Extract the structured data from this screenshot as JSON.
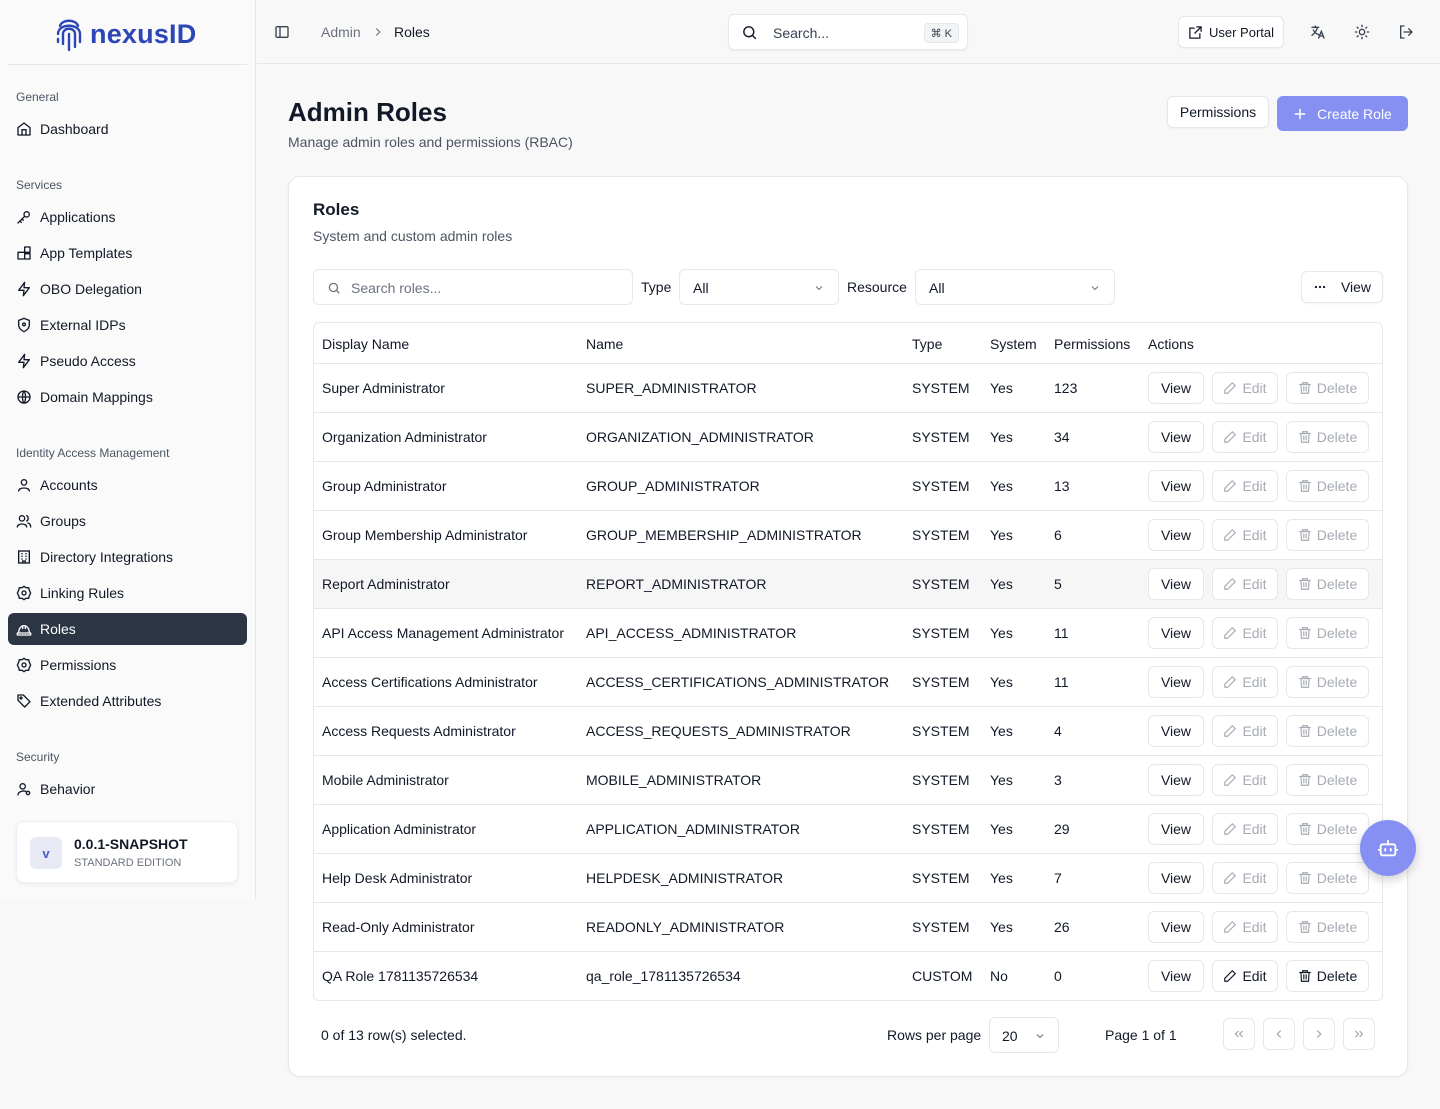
{
  "brand": {
    "name": "nexusID"
  },
  "sidebar": {
    "sections": [
      {
        "label": "General",
        "items": [
          {
            "label": "Dashboard",
            "icon": "home-icon"
          }
        ]
      },
      {
        "label": "Services",
        "items": [
          {
            "label": "Applications",
            "icon": "key-icon"
          },
          {
            "label": "App Templates",
            "icon": "blocks-icon"
          },
          {
            "label": "OBO Delegation",
            "icon": "zap-icon"
          },
          {
            "label": "External IDPs",
            "icon": "shield-icon"
          },
          {
            "label": "Pseudo Access",
            "icon": "zap-icon"
          },
          {
            "label": "Domain Mappings",
            "icon": "globe-icon"
          }
        ]
      },
      {
        "label": "Identity Access Management",
        "items": [
          {
            "label": "Accounts",
            "icon": "user-icon"
          },
          {
            "label": "Groups",
            "icon": "users-icon"
          },
          {
            "label": "Directory Integrations",
            "icon": "building-icon"
          },
          {
            "label": "Linking Rules",
            "icon": "badge-icon"
          },
          {
            "label": "Roles",
            "icon": "hard-hat-icon"
          },
          {
            "label": "Permissions",
            "icon": "badge-icon"
          },
          {
            "label": "Extended Attributes",
            "icon": "tag-icon"
          }
        ]
      },
      {
        "label": "Security",
        "items": [
          {
            "label": "Behavior",
            "icon": "user-cog-icon"
          }
        ]
      }
    ],
    "active_item": "Roles"
  },
  "version": {
    "avatar": "v",
    "title": "0.0.1-SNAPSHOT",
    "subtitle": "STANDARD EDITION"
  },
  "header": {
    "breadcrumb": [
      "Admin",
      "Roles"
    ],
    "search_placeholder": "Search...",
    "shortcut": "⌘ K",
    "user_portal_label": "User Portal"
  },
  "page": {
    "title": "Admin Roles",
    "subtitle": "Manage admin roles and permissions (RBAC)",
    "permissions_button": "Permissions",
    "create_button": "Create Role"
  },
  "card": {
    "title": "Roles",
    "subtitle": "System and custom admin roles",
    "search_placeholder": "Search roles...",
    "type_label": "Type",
    "type_value": "All",
    "resource_label": "Resource",
    "resource_value": "All",
    "view_button": "View"
  },
  "table": {
    "columns": [
      "Display Name",
      "Name",
      "Type",
      "System",
      "Permissions",
      "Actions"
    ],
    "action_labels": {
      "view": "View",
      "edit": "Edit",
      "delete": "Delete"
    },
    "rows": [
      {
        "display_name": "Super Administrator",
        "name": "SUPER_ADMINISTRATOR",
        "type": "SYSTEM",
        "system": "Yes",
        "permissions": "123",
        "editable": false
      },
      {
        "display_name": "Organization Administrator",
        "name": "ORGANIZATION_ADMINISTRATOR",
        "type": "SYSTEM",
        "system": "Yes",
        "permissions": "34",
        "editable": false
      },
      {
        "display_name": "Group Administrator",
        "name": "GROUP_ADMINISTRATOR",
        "type": "SYSTEM",
        "system": "Yes",
        "permissions": "13",
        "editable": false
      },
      {
        "display_name": "Group Membership Administrator",
        "name": "GROUP_MEMBERSHIP_ADMINISTRATOR",
        "type": "SYSTEM",
        "system": "Yes",
        "permissions": "6",
        "editable": false
      },
      {
        "display_name": "Report Administrator",
        "name": "REPORT_ADMINISTRATOR",
        "type": "SYSTEM",
        "system": "Yes",
        "permissions": "5",
        "editable": false
      },
      {
        "display_name": "API Access Management Administrator",
        "name": "API_ACCESS_ADMINISTRATOR",
        "type": "SYSTEM",
        "system": "Yes",
        "permissions": "11",
        "editable": false
      },
      {
        "display_name": "Access Certifications Administrator",
        "name": "ACCESS_CERTIFICATIONS_ADMINISTRATOR",
        "type": "SYSTEM",
        "system": "Yes",
        "permissions": "11",
        "editable": false
      },
      {
        "display_name": "Access Requests Administrator",
        "name": "ACCESS_REQUESTS_ADMINISTRATOR",
        "type": "SYSTEM",
        "system": "Yes",
        "permissions": "4",
        "editable": false
      },
      {
        "display_name": "Mobile Administrator",
        "name": "MOBILE_ADMINISTRATOR",
        "type": "SYSTEM",
        "system": "Yes",
        "permissions": "3",
        "editable": false
      },
      {
        "display_name": "Application Administrator",
        "name": "APPLICATION_ADMINISTRATOR",
        "type": "SYSTEM",
        "system": "Yes",
        "permissions": "29",
        "editable": false
      },
      {
        "display_name": "Help Desk Administrator",
        "name": "HELPDESK_ADMINISTRATOR",
        "type": "SYSTEM",
        "system": "Yes",
        "permissions": "7",
        "editable": false
      },
      {
        "display_name": "Read-Only Administrator",
        "name": "READONLY_ADMINISTRATOR",
        "type": "SYSTEM",
        "system": "Yes",
        "permissions": "26",
        "editable": false
      },
      {
        "display_name": "QA Role 1781135726534",
        "name": "qa_role_1781135726534",
        "type": "CUSTOM",
        "system": "No",
        "permissions": "0",
        "editable": true
      }
    ]
  },
  "footer": {
    "selection": "0 of 13 row(s) selected.",
    "rows_per_page_label": "Rows per page",
    "rows_per_page_value": "20",
    "page_info": "Page 1 of 1"
  },
  "colors": {
    "brand": "#2d46b5",
    "accent": "#8590f2",
    "active_nav": "#2b3543"
  }
}
